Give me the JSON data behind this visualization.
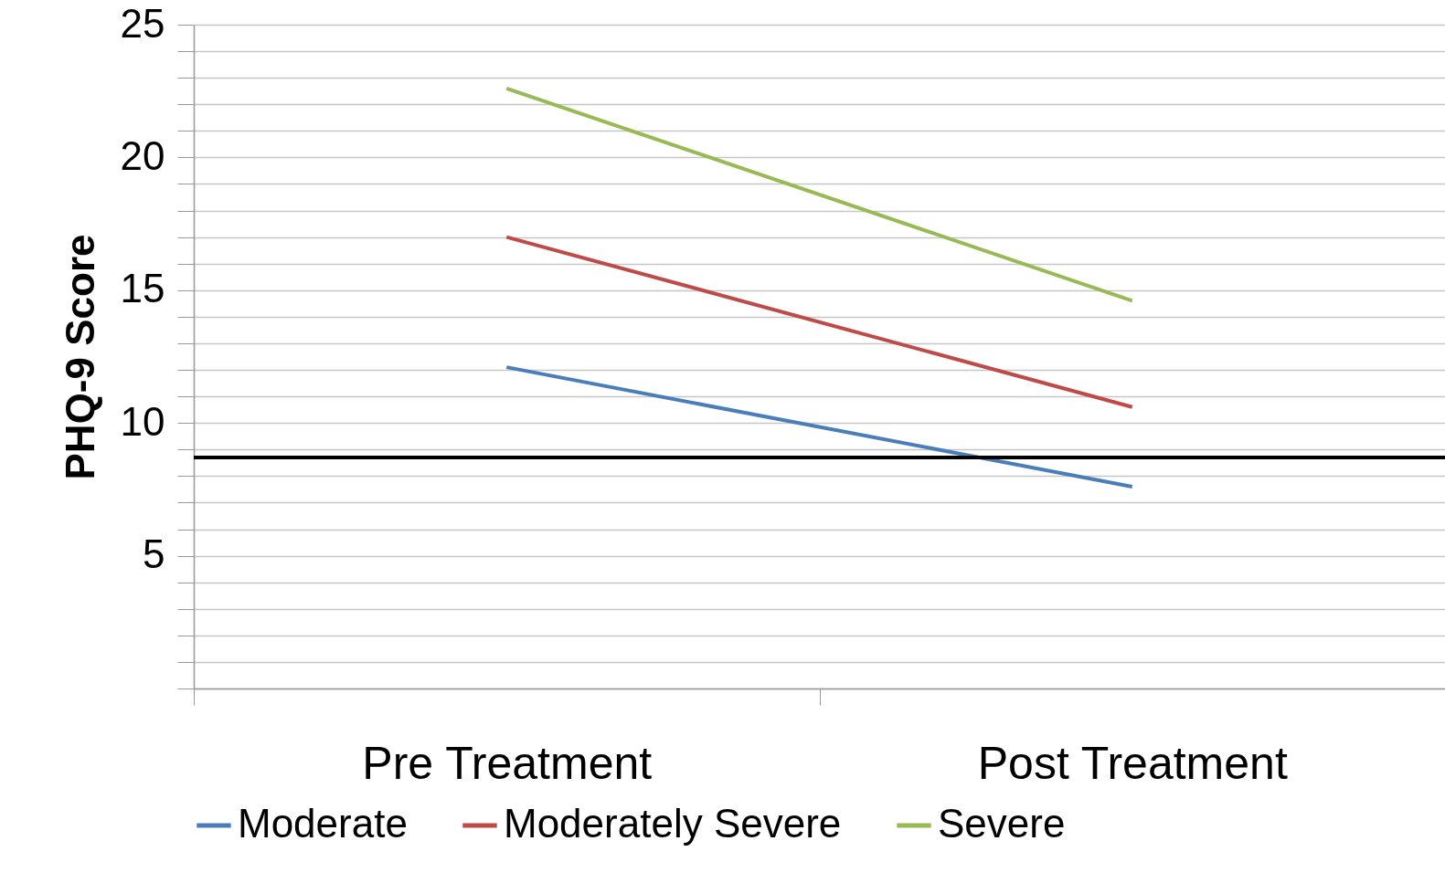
{
  "chart_data": {
    "type": "line",
    "ylabel": "PHQ-9 Score",
    "categories": [
      "Pre Treatment",
      "Post Treatment"
    ],
    "series": [
      {
        "name": "Moderate",
        "color": "#4a7ebb",
        "values": [
          12.1,
          7.6
        ]
      },
      {
        "name": "Moderately Severe",
        "color": "#be4b48",
        "values": [
          17.0,
          10.6
        ]
      },
      {
        "name": "Severe",
        "color": "#98b954",
        "values": [
          22.6,
          14.6
        ]
      }
    ],
    "ylim": [
      0,
      25
    ],
    "yticks": [
      {
        "value": 0,
        "label": null
      },
      {
        "value": 1,
        "label": null
      },
      {
        "value": 2,
        "label": null
      },
      {
        "value": 3,
        "label": null
      },
      {
        "value": 4,
        "label": null
      },
      5,
      {
        "value": 6,
        "label": null
      },
      {
        "value": 7,
        "label": null
      },
      {
        "value": 8,
        "label": null
      },
      {
        "value": 9,
        "label": null
      },
      10,
      {
        "value": 11,
        "label": null
      },
      {
        "value": 12,
        "label": null
      },
      {
        "value": 13,
        "label": null
      },
      {
        "value": 14,
        "label": null
      },
      15,
      {
        "value": 16,
        "label": null
      },
      {
        "value": 17,
        "label": null
      },
      {
        "value": 18,
        "label": null
      },
      {
        "value": 19,
        "label": null
      },
      20,
      {
        "value": 21,
        "label": null
      },
      {
        "value": 22,
        "label": null
      },
      {
        "value": 23,
        "label": null
      },
      {
        "value": 24,
        "label": null
      },
      25
    ],
    "grid": "y",
    "legend": "bottom",
    "marker": "none",
    "line_style": "solid",
    "ref_lines": [
      {
        "axis": "y",
        "value": 8.7,
        "color": "#000000",
        "line_style": "solid"
      }
    ]
  }
}
